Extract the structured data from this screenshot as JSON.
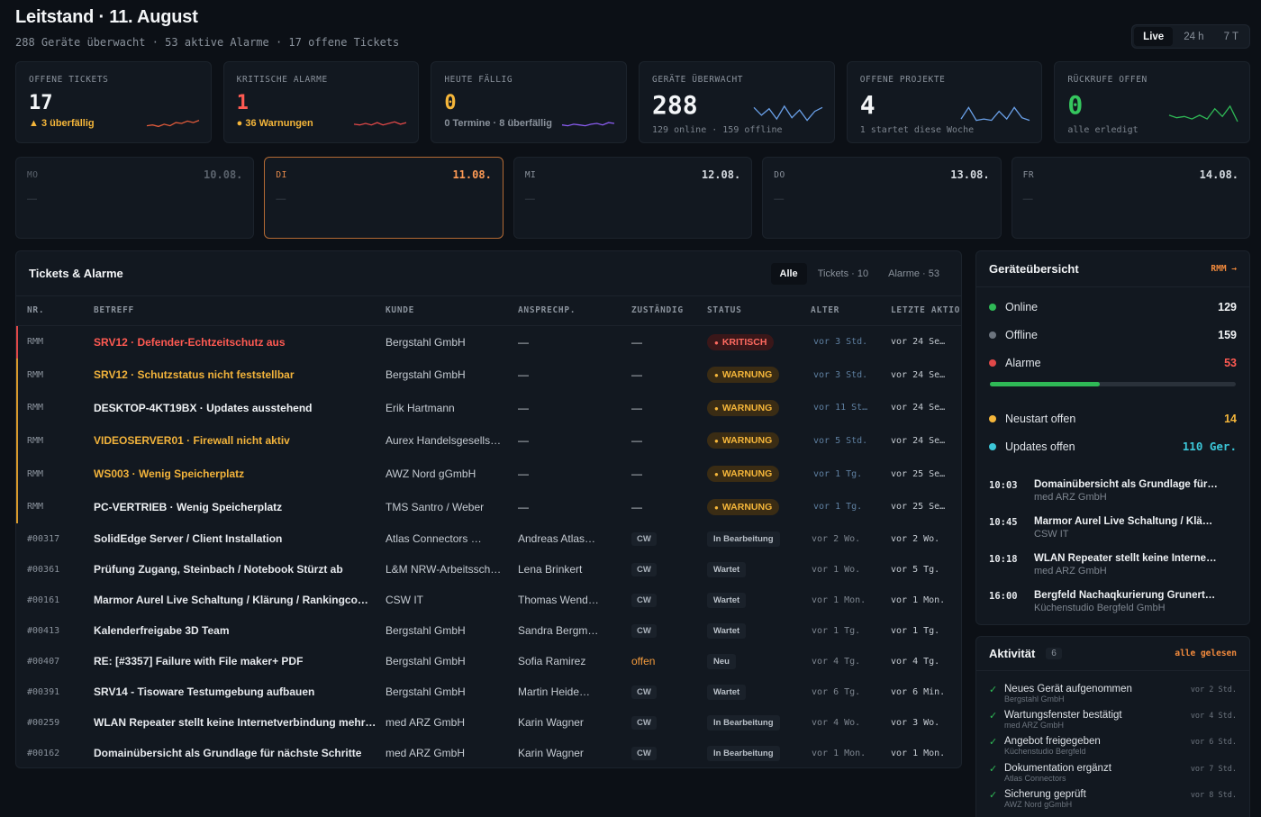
{
  "header": {
    "title": "Leitstand · 11. August",
    "subtitle": "288 Geräte überwacht · 53 aktive Alarme · 17 offene Tickets",
    "ranges": [
      "Live",
      "24 h",
      "7 T"
    ]
  },
  "kpis": [
    {
      "label": "OFFENE TICKETS",
      "value": "17",
      "foot": "▲ 3 überfällig",
      "color": "#f3f5f7",
      "foot_color": "#f5b63a",
      "spark_color": "#e05a3a"
    },
    {
      "label": "KRITISCHE ALARME",
      "value": "1",
      "foot": "● 36 Warnungen",
      "color": "#ff5a52",
      "foot_color": "#f5b63a",
      "spark_color": "#e04848"
    },
    {
      "label": "HEUTE FÄLLIG",
      "value": "0",
      "foot": "0 Termine · 8 überfällig",
      "color": "#f5b63a",
      "foot_color": "#8a929c",
      "spark_color": "#8a5cf0"
    },
    {
      "label": "GERÄTE ÜBERWACHT",
      "value": "288",
      "foot": "129 online · 159 offline",
      "color": "#f3f5f7",
      "foot_color": "#7d858f",
      "spark_color": "#6aa0e8"
    },
    {
      "label": "OFFENE PROJEKTE",
      "value": "4",
      "foot": "1 startet diese Woche",
      "color": "#f3f5f7",
      "foot_color": "#7d858f",
      "spark_color": "#6aa0e8"
    },
    {
      "label": "RÜCKRUFE OFFEN",
      "value": "0",
      "foot": "alle erledigt",
      "color": "#35c65e",
      "foot_color": "#7d858f",
      "spark_color": "#2fb956"
    }
  ],
  "days": [
    {
      "name": "MO",
      "date": "10.08.",
      "dash": "—"
    },
    {
      "name": "DI",
      "date": "11.08.",
      "dash": "—"
    },
    {
      "name": "MI",
      "date": "12.08.",
      "dash": "—"
    },
    {
      "name": "DO",
      "date": "13.08.",
      "dash": "—"
    },
    {
      "name": "FR",
      "date": "14.08.",
      "dash": "—"
    }
  ],
  "tickets": {
    "title": "Tickets & Alarme",
    "tabs": [
      "Alle",
      "Tickets · 10",
      "Alarme · 53"
    ],
    "columns": [
      "NR.",
      "BETREFF",
      "KUNDE",
      "ANSPRECHP.",
      "ZUSTÄNDIG",
      "STATUS",
      "ALTER",
      "LETZTE AKTIO"
    ],
    "alarms": [
      {
        "nr": "RMM",
        "subject": "SRV12 · Defender-Echtzeitschutz aus",
        "kunde": "Bergstahl GmbH",
        "ansp": "—",
        "zust": "—",
        "status": "KRITISCH",
        "alter": "vor 3 Std.",
        "letzte": "vor 24 Se…",
        "sev": "k"
      },
      {
        "nr": "RMM",
        "subject": "SRV12 · Schutzstatus nicht feststellbar",
        "kunde": "Bergstahl GmbH",
        "ansp": "—",
        "zust": "—",
        "status": "WARNUNG",
        "alter": "vor 3 Std.",
        "letzte": "vor 24 Se…",
        "sev": "w"
      },
      {
        "nr": "RMM",
        "subject": "DESKTOP-4KT19BX · Updates ausstehend",
        "kunde": "Erik Hartmann",
        "ansp": "—",
        "zust": "—",
        "status": "WARNUNG",
        "alter": "vor 11 St…",
        "letzte": "vor 24 Se…",
        "sev": "w"
      },
      {
        "nr": "RMM",
        "subject": "VIDEOSERVER01 · Firewall nicht aktiv",
        "kunde": "Aurex Handelsgesells…",
        "ansp": "—",
        "zust": "—",
        "status": "WARNUNG",
        "alter": "vor 5 Std.",
        "letzte": "vor 24 Se…",
        "sev": "w"
      },
      {
        "nr": "RMM",
        "subject": "WS003 · Wenig Speicherplatz",
        "kunde": "AWZ Nord gGmbH",
        "ansp": "—",
        "zust": "—",
        "status": "WARNUNG",
        "alter": "vor 1 Tg.",
        "letzte": "vor 25 Se…",
        "sev": "w"
      },
      {
        "nr": "RMM",
        "subject": "PC-VERTRIEB · Wenig Speicherplatz",
        "kunde": "TMS Santro / Weber",
        "ansp": "—",
        "zust": "—",
        "status": "WARNUNG",
        "alter": "vor 1 Tg.",
        "letzte": "vor 25 Se…",
        "sev": "w"
      }
    ],
    "rows": [
      {
        "nr": "#00317",
        "subject": "SolidEdge Server / Client Installation",
        "kunde": "Atlas Connectors …",
        "ansp": "Andreas Atlas…",
        "zust": "CW",
        "status": "In Bearbeitung",
        "alter": "vor 2 Wo.",
        "letzte": "vor 2 Wo."
      },
      {
        "nr": "#00361",
        "subject": "Prüfung Zugang, Steinbach / Notebook Stürzt ab",
        "kunde": "L&M NRW-Arbeitssch…",
        "ansp": "Lena Brinkert",
        "zust": "CW",
        "status": "Wartet",
        "alter": "vor 1 Wo.",
        "letzte": "vor 5 Tg."
      },
      {
        "nr": "#00161",
        "subject": "Marmor Aurel Live Schaltung / Klärung / Rankingco…",
        "kunde": "CSW IT",
        "ansp": "Thomas Wend…",
        "zust": "CW",
        "status": "Wartet",
        "alter": "vor 1 Mon.",
        "letzte": "vor 1 Mon."
      },
      {
        "nr": "#00413",
        "subject": "Kalenderfreigabe 3D Team",
        "kunde": "Bergstahl GmbH",
        "ansp": "Sandra Bergm…",
        "zust": "CW",
        "status": "Wartet",
        "alter": "vor 1 Tg.",
        "letzte": "vor 1 Tg."
      },
      {
        "nr": "#00407",
        "subject": "RE: [#3357] Failure with File maker+ PDF",
        "kunde": "Bergstahl GmbH",
        "ansp": "Sofia Ramirez",
        "zust": "offen",
        "status": "Neu",
        "alter": "vor 4 Tg.",
        "letzte": "vor 4 Tg."
      },
      {
        "nr": "#00391",
        "subject": "SRV14 - Tisoware Testumgebung aufbauen",
        "kunde": "Bergstahl GmbH",
        "ansp": "Martin Heide…",
        "zust": "CW",
        "status": "Wartet",
        "alter": "vor 6 Tg.",
        "letzte": "vor 6 Min."
      },
      {
        "nr": "#00259",
        "subject": "WLAN Repeater stellt keine Internetverbindung mehr h…",
        "kunde": "med ARZ GmbH",
        "ansp": "Karin Wagner",
        "zust": "CW",
        "status": "In Bearbeitung",
        "alter": "vor 4 Wo.",
        "letzte": "vor 3 Wo."
      },
      {
        "nr": "#00162",
        "subject": "Domainübersicht als Grundlage für nächste Schritte",
        "kunde": "med ARZ GmbH",
        "ansp": "Karin Wagner",
        "zust": "CW",
        "status": "In Bearbeitung",
        "alter": "vor 1 Mon.",
        "letzte": "vor 1 Mon."
      }
    ]
  },
  "geraete": {
    "title": "Geräteübersicht",
    "link": "RMM →",
    "stats": [
      {
        "label": "Online",
        "value": "129",
        "dot": "#2fb956",
        "vcolor": "#f3f5f7"
      },
      {
        "label": "Offline",
        "value": "159",
        "dot": "#6c747e",
        "vcolor": "#f3f5f7"
      },
      {
        "label": "Alarme",
        "value": "53",
        "dot": "#e04848",
        "vcolor": "#ff5a52"
      }
    ],
    "online_fraction": 0.448,
    "stats2": [
      {
        "label": "Neustart offen",
        "value": "14",
        "dot": "#f5b63a",
        "vcolor": "#f5b63a"
      },
      {
        "label": "Updates offen",
        "value": "110 Ger.",
        "dot": "#3cc6d8",
        "vcolor": "#3cc6d8"
      }
    ],
    "events": [
      {
        "time": "10:03",
        "title": "Domainübersicht als Grundlage für…",
        "sub": "med ARZ GmbH"
      },
      {
        "time": "10:45",
        "title": "Marmor Aurel Live Schaltung / Klä…",
        "sub": "CSW IT"
      },
      {
        "time": "10:18",
        "title": "WLAN Repeater stellt keine Interne…",
        "sub": "med ARZ GmbH"
      },
      {
        "time": "16:00",
        "title": "Bergfeld Nachaqkurierung Grunert…",
        "sub": "Küchenstudio Bergfeld GmbH"
      }
    ]
  },
  "aktivitaet": {
    "title": "Aktivität",
    "count": "6",
    "link": "alle gelesen",
    "items": [
      {
        "title": "Neues Gerät aufgenommen",
        "sub": "Bergstahl GmbH",
        "when": "vor 2 Std."
      },
      {
        "title": "Wartungsfenster bestätigt",
        "sub": "med ARZ GmbH",
        "when": "vor 4 Std."
      },
      {
        "title": "Angebot freigegeben",
        "sub": "Küchenstudio Bergfeld",
        "when": "vor 6 Std."
      },
      {
        "title": "Dokumentation ergänzt",
        "sub": "Atlas Connectors",
        "when": "vor 7 Std."
      },
      {
        "title": "Sicherung geprüft",
        "sub": "AWZ Nord gGmbH",
        "when": "vor 8 Std."
      }
    ]
  }
}
